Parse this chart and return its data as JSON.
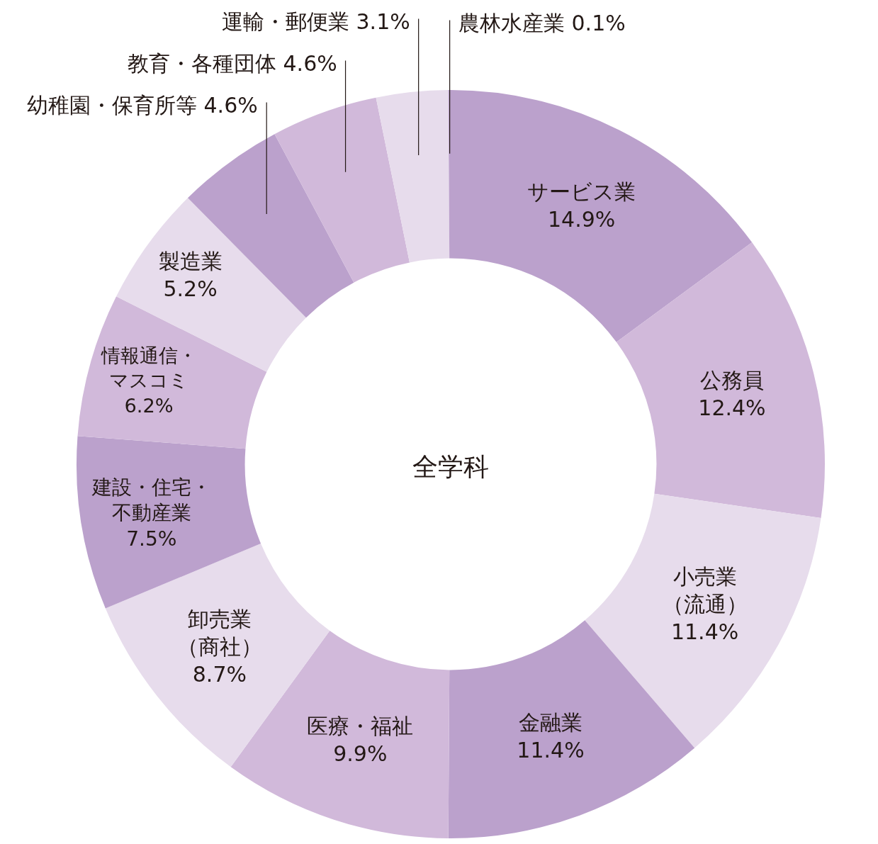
{
  "chart_data": {
    "type": "donut",
    "title": "全学科",
    "categories": [
      "サービス業",
      "公務員",
      "小売業（流通）",
      "金融業",
      "医療・福祉",
      "卸売業（商社）",
      "建設・住宅・不動産業",
      "情報通信・マスコミ",
      "製造業",
      "幼稚園・保育所等",
      "教育・各種団体",
      "運輸・郵便業",
      "農林水産業"
    ],
    "values": [
      14.9,
      12.4,
      11.4,
      11.4,
      9.9,
      8.7,
      7.5,
      6.2,
      5.2,
      4.6,
      4.6,
      3.1,
      0.1
    ],
    "value_labels": [
      "14.9%",
      "12.4%",
      "11.4%",
      "11.4%",
      "9.9%",
      "8.7%",
      "7.5%",
      "6.2%",
      "5.2%",
      "4.6%",
      "4.6%",
      "3.1%",
      "0.1%"
    ],
    "colors": [
      "#bba1cc",
      "#d1b9da",
      "#e7dcec",
      "#bba1cc",
      "#d1b9da",
      "#e7dcec",
      "#bba1cc",
      "#d1b9da",
      "#e7dcec",
      "#bba1cc",
      "#d1b9da",
      "#e7dcec",
      "#bba1cc"
    ],
    "legend": false
  }
}
